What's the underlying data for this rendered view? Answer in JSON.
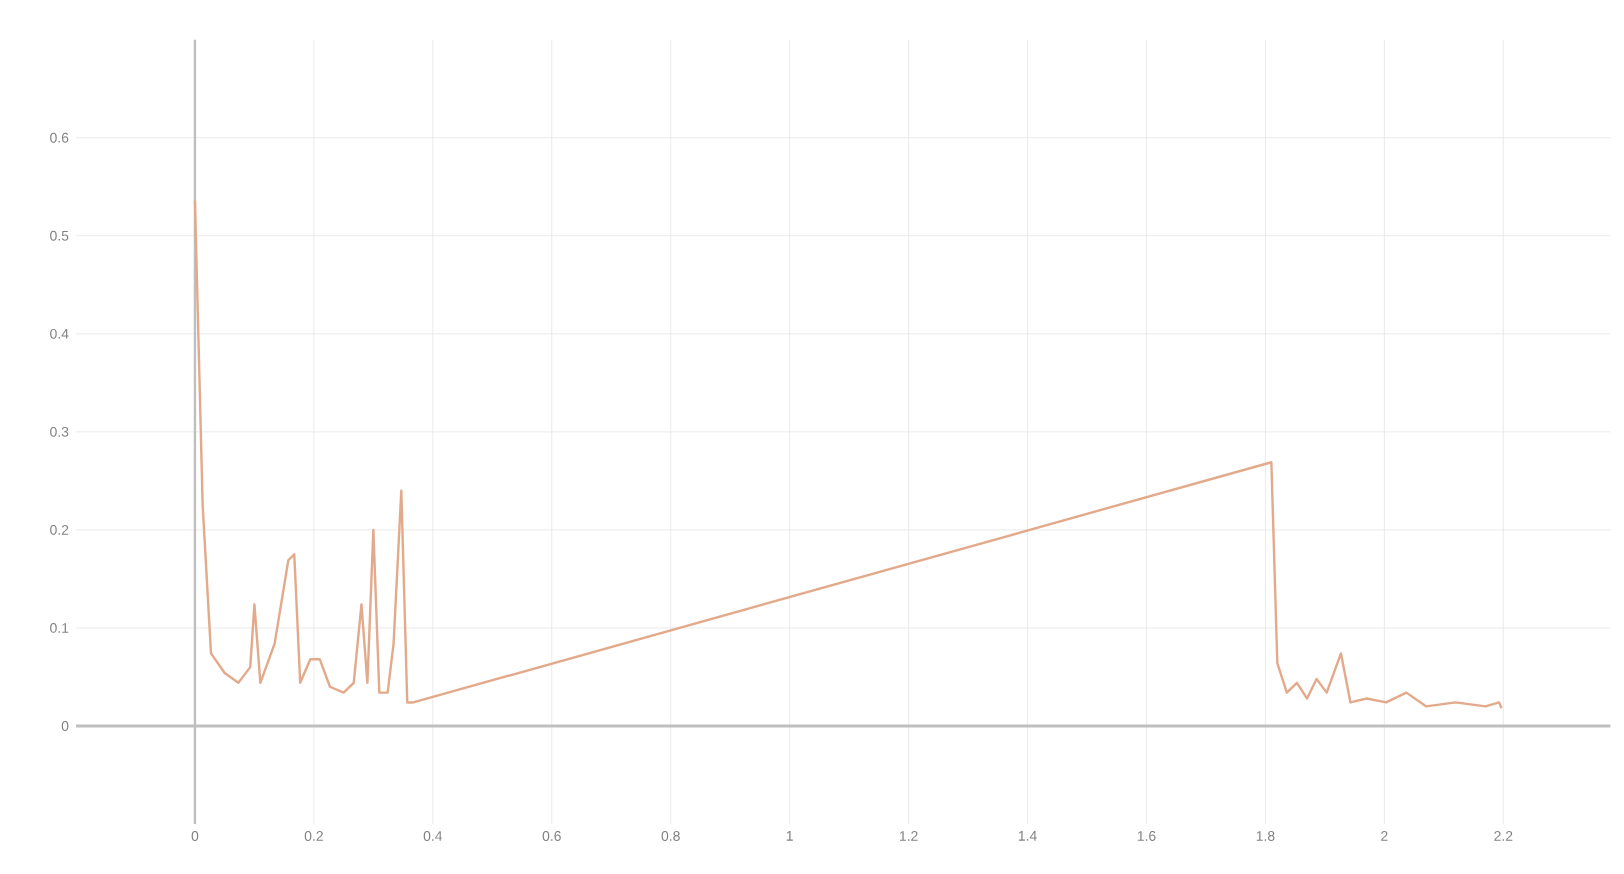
{
  "chart_data": {
    "type": "line",
    "grid": true,
    "marker": "none",
    "line_style": "solid",
    "xlim": [
      -0.2,
      2.38
    ],
    "ylim": [
      -0.1,
      0.7
    ],
    "xticks": [
      0,
      0.2,
      0.4,
      0.6,
      0.8,
      1,
      1.2,
      1.4,
      1.6,
      1.8,
      2,
      2.2
    ],
    "yticks": [
      0,
      0.1,
      0.2,
      0.3,
      0.4,
      0.5,
      0.6
    ],
    "series": [
      {
        "color": "#e2a98a",
        "x": [
          0,
          0.013,
          0.027,
          0.05,
          0.073,
          0.093,
          0.1,
          0.11,
          0.134,
          0.157,
          0.167,
          0.177,
          0.194,
          0.21,
          0.227,
          0.25,
          0.267,
          0.28,
          0.29,
          0.3,
          0.31,
          0.324,
          0.334,
          0.347,
          0.357,
          0.367,
          1.81,
          1.82,
          1.836,
          1.853,
          1.87,
          1.886,
          1.903,
          1.927,
          1.943,
          1.97,
          2.003,
          2.037,
          2.07,
          2.12,
          2.17,
          2.193,
          2.197
        ],
        "values": [
          0.536,
          0.225,
          0.074,
          0.054,
          0.044,
          0.06,
          0.124,
          0.044,
          0.084,
          0.169,
          0.175,
          0.044,
          0.068,
          0.068,
          0.04,
          0.034,
          0.044,
          0.124,
          0.044,
          0.2,
          0.034,
          0.034,
          0.084,
          0.24,
          0.024,
          0.024,
          0.269,
          0.064,
          0.034,
          0.044,
          0.028,
          0.048,
          0.034,
          0.074,
          0.024,
          0.028,
          0.024,
          0.034,
          0.02,
          0.024,
          0.02,
          0.024,
          0.018
        ]
      }
    ]
  }
}
